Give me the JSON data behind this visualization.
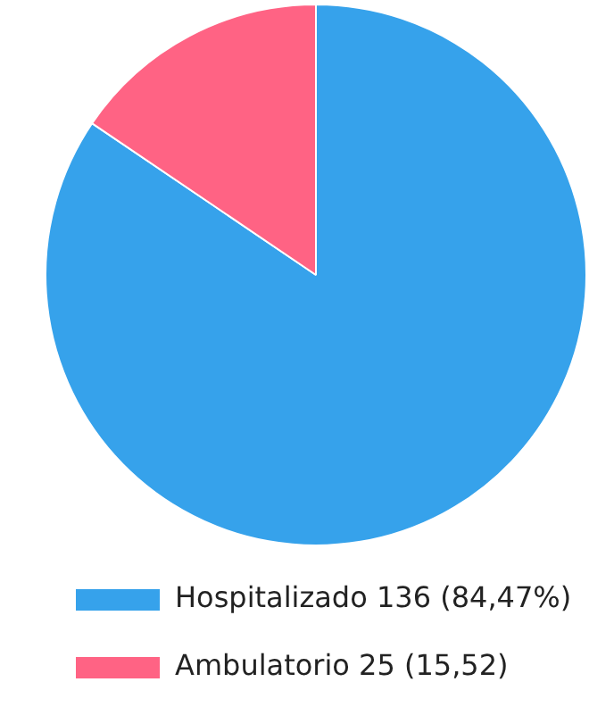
{
  "chart_data": {
    "type": "pie",
    "categories": [
      "Hospitalizado 136 (84,47%)",
      "Ambulatorio 25 (15,52)"
    ],
    "values": [
      136,
      25
    ],
    "colors": [
      "#36a2eb",
      "#ff6384"
    ],
    "legend": "bottom left"
  }
}
